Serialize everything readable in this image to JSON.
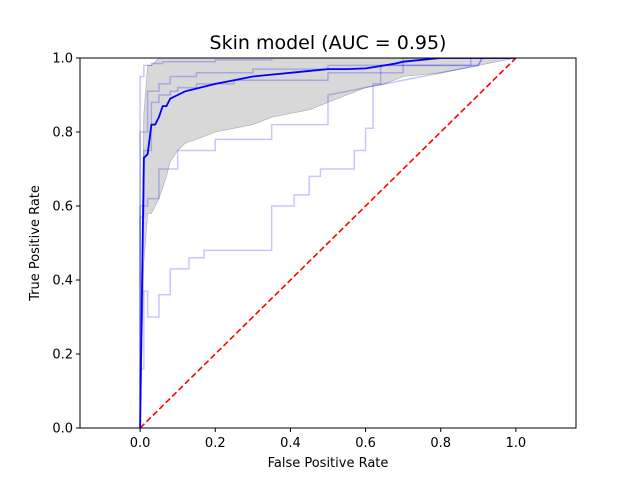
{
  "chart_data": {
    "type": "line",
    "title": "Skin model (AUC = 0.95)",
    "xlabel": "False Positive Rate",
    "ylabel": "True Positive Rate",
    "xlim": [
      -0.16,
      1.16
    ],
    "ylim": [
      0,
      1
    ],
    "xticks": [
      "0.0",
      "0.2",
      "0.4",
      "0.6",
      "0.8",
      "1.0"
    ],
    "yticks": [
      "0.0",
      "0.2",
      "0.4",
      "0.6",
      "0.8",
      "1.0"
    ],
    "grid": false,
    "colors": {
      "mean": "#0000ff",
      "fold": "#0000ff",
      "band": "#d8d8d8",
      "chance": "#ff0000"
    },
    "band": {
      "x": [
        0.0,
        0.01,
        0.02,
        0.03,
        0.05,
        0.07,
        0.08,
        0.1,
        0.12,
        0.15,
        0.2,
        0.25,
        0.3,
        0.35,
        0.4,
        0.45,
        0.5,
        0.55,
        0.6,
        0.65,
        0.7,
        0.8,
        0.9,
        1.0
      ],
      "upper": [
        0.15,
        0.85,
        0.98,
        0.98,
        1.0,
        1.0,
        1.0,
        1.0,
        1.0,
        1.0,
        1.0,
        1.0,
        1.0,
        1.0,
        1.0,
        1.0,
        1.0,
        1.0,
        1.0,
        1.0,
        1.0,
        1.0,
        1.0,
        1.0
      ],
      "lower": [
        0.0,
        0.45,
        0.58,
        0.58,
        0.62,
        0.68,
        0.72,
        0.75,
        0.77,
        0.78,
        0.8,
        0.81,
        0.82,
        0.84,
        0.85,
        0.86,
        0.88,
        0.9,
        0.92,
        0.93,
        0.95,
        0.96,
        0.98,
        1.0
      ]
    },
    "mean_curve": {
      "x": [
        0.0,
        0.01,
        0.02,
        0.03,
        0.04,
        0.05,
        0.06,
        0.07,
        0.08,
        0.1,
        0.12,
        0.14,
        0.16,
        0.18,
        0.2,
        0.25,
        0.3,
        0.35,
        0.4,
        0.45,
        0.5,
        0.55,
        0.6,
        0.62,
        0.65,
        0.68,
        0.7,
        0.8,
        1.0
      ],
      "y": [
        0.0,
        0.73,
        0.74,
        0.82,
        0.82,
        0.84,
        0.87,
        0.87,
        0.89,
        0.9,
        0.91,
        0.915,
        0.92,
        0.925,
        0.93,
        0.94,
        0.95,
        0.955,
        0.96,
        0.965,
        0.97,
        0.97,
        0.972,
        0.975,
        0.98,
        0.985,
        0.99,
        1.0,
        1.0
      ]
    },
    "folds": [
      {
        "x": [
          0.0,
          0.0,
          0.01,
          0.01,
          0.02,
          0.02,
          0.05,
          0.05,
          0.08,
          0.08,
          0.13,
          0.13,
          0.17,
          0.17,
          0.22,
          0.22,
          0.35,
          0.35,
          0.41,
          0.41,
          0.45,
          0.45,
          0.48,
          0.48,
          0.57,
          0.57,
          0.6,
          0.6,
          0.62,
          0.62,
          0.64,
          0.64,
          0.9,
          0.91,
          1.0
        ],
        "y": [
          0.0,
          0.16,
          0.16,
          0.37,
          0.37,
          0.3,
          0.3,
          0.36,
          0.36,
          0.43,
          0.43,
          0.46,
          0.46,
          0.48,
          0.48,
          0.48,
          0.48,
          0.6,
          0.6,
          0.63,
          0.63,
          0.68,
          0.68,
          0.7,
          0.7,
          0.75,
          0.75,
          0.81,
          0.81,
          0.93,
          0.93,
          0.98,
          0.98,
          1.0,
          1.0
        ]
      },
      {
        "x": [
          0.0,
          0.0,
          0.01,
          0.01,
          0.03,
          0.03,
          0.05,
          0.05,
          0.08,
          0.08,
          0.1,
          0.1,
          0.15,
          0.15,
          0.25,
          0.25,
          0.5,
          0.5,
          0.7,
          0.7,
          1.0
        ],
        "y": [
          0.0,
          0.57,
          0.57,
          0.75,
          0.75,
          0.88,
          0.88,
          0.9,
          0.9,
          0.91,
          0.91,
          0.92,
          0.92,
          0.93,
          0.93,
          0.94,
          0.94,
          0.96,
          0.96,
          1.0,
          1.0
        ]
      },
      {
        "x": [
          0.0,
          0.0,
          0.02,
          0.02,
          0.05,
          0.05,
          0.08,
          0.08,
          0.15,
          0.15,
          0.3,
          0.3,
          0.5,
          0.5,
          0.88,
          0.88,
          1.0
        ],
        "y": [
          0.0,
          0.8,
          0.8,
          0.91,
          0.91,
          0.93,
          0.93,
          0.95,
          0.95,
          0.96,
          0.96,
          0.97,
          0.97,
          0.98,
          0.98,
          1.0,
          1.0
        ]
      },
      {
        "x": [
          0.0,
          0.0,
          0.01,
          0.01,
          0.03,
          0.03,
          0.06,
          0.06,
          0.1,
          0.1,
          0.2,
          0.2,
          0.35,
          0.35,
          0.5,
          0.5,
          1.0
        ],
        "y": [
          0.0,
          0.95,
          0.95,
          0.98,
          0.98,
          0.985,
          0.985,
          0.99,
          0.99,
          0.99,
          0.99,
          0.995,
          0.995,
          1.0,
          1.0,
          1.0,
          1.0
        ]
      },
      {
        "x": [
          0.0,
          0.0,
          0.02,
          0.02,
          0.05,
          0.05,
          0.1,
          0.1,
          0.2,
          0.2,
          0.35,
          0.35,
          0.5,
          0.5,
          0.9,
          0.91,
          1.0
        ],
        "y": [
          0.0,
          0.6,
          0.6,
          0.62,
          0.62,
          0.7,
          0.7,
          0.75,
          0.75,
          0.78,
          0.78,
          0.82,
          0.82,
          0.9,
          0.98,
          1.0,
          1.0
        ]
      }
    ],
    "chance_line": {
      "x": [
        0.0,
        1.0
      ],
      "y": [
        0.0,
        1.0
      ]
    }
  }
}
